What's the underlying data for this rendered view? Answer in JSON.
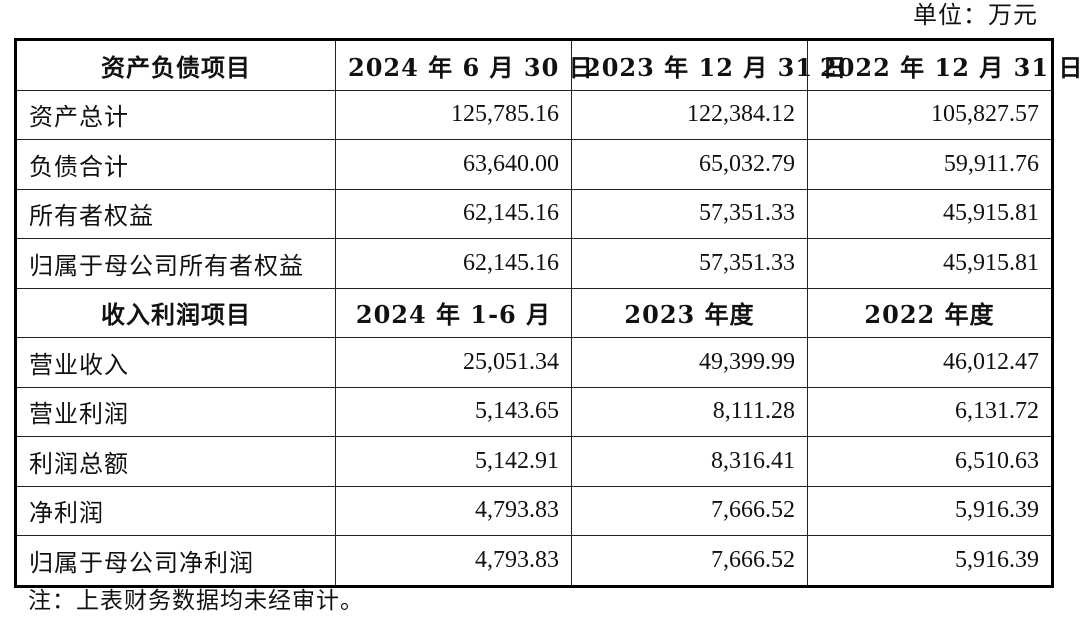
{
  "unit": "单位：万元",
  "balance_header": [
    "资产负债项目",
    "2024 年 6 月 30 日",
    "2023 年 12 月 31 日",
    "2022 年 12 月 31 日"
  ],
  "balance_rows": [
    {
      "label": "资产总计",
      "v1": "125,785.16",
      "v2": "122,384.12",
      "v3": "105,827.57"
    },
    {
      "label": "负债合计",
      "v1": "63,640.00",
      "v2": "65,032.79",
      "v3": "59,911.76"
    },
    {
      "label": "所有者权益",
      "v1": "62,145.16",
      "v2": "57,351.33",
      "v3": "45,915.81"
    },
    {
      "label": "归属于母公司所有者权益",
      "v1": "62,145.16",
      "v2": "57,351.33",
      "v3": "45,915.81"
    }
  ],
  "income_header": [
    "收入利润项目",
    "2024 年 1-6 月",
    "2023 年度",
    "2022 年度"
  ],
  "income_rows": [
    {
      "label": "营业收入",
      "v1": "25,051.34",
      "v2": "49,399.99",
      "v3": "46,012.47"
    },
    {
      "label": "营业利润",
      "v1": "5,143.65",
      "v2": "8,111.28",
      "v3": "6,131.72"
    },
    {
      "label": "利润总额",
      "v1": "5,142.91",
      "v2": "8,316.41",
      "v3": "6,510.63"
    },
    {
      "label": "净利润",
      "v1": "4,793.83",
      "v2": "7,666.52",
      "v3": "5,916.39"
    },
    {
      "label": "归属于母公司净利润",
      "v1": "4,793.83",
      "v2": "7,666.52",
      "v3": "5,916.39"
    }
  ],
  "note": "注：上表财务数据均未经审计。"
}
